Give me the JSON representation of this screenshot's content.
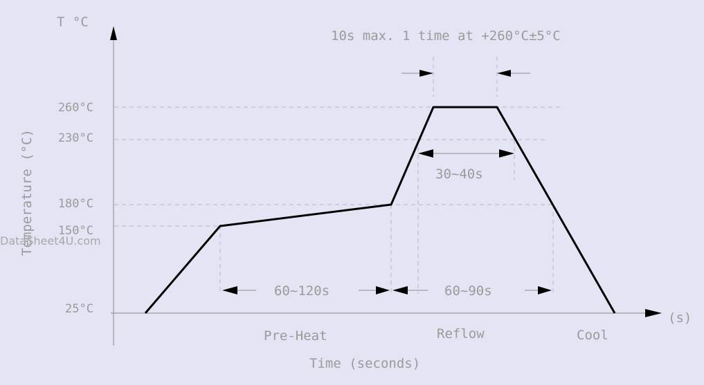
{
  "axes": {
    "y_unit": "T °C",
    "y_label": "Temperature (°C)",
    "x_unit": "(s)",
    "x_label": "Time (seconds)"
  },
  "temperature_ticks": [
    "260°C",
    "230°C",
    "180°C",
    "150°C",
    "25°C"
  ],
  "annotations": {
    "peak_note": "10s max. 1 time at +260°C±5°C",
    "above_230": "30~40s",
    "preheat_duration": "60~120s",
    "reflow_duration": "60~90s"
  },
  "phases": [
    "Pre-Heat",
    "Reflow",
    "Cool"
  ],
  "watermark": "DataSheet4U.com",
  "profile": [
    {
      "phase": "start",
      "temp": 25
    },
    {
      "phase": "preheat-start",
      "temp": 150
    },
    {
      "phase": "preheat-end",
      "temp": 180
    },
    {
      "phase": "peak-start",
      "temp": 260
    },
    {
      "phase": "peak-end",
      "temp": 260
    },
    {
      "phase": "end",
      "temp": 25
    }
  ]
}
